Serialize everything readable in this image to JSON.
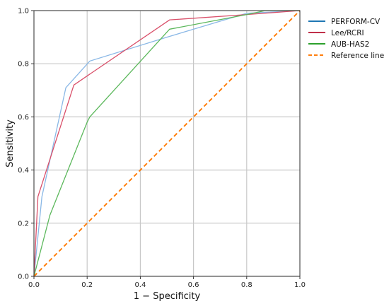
{
  "chart_data": {
    "type": "line",
    "title": "",
    "xlabel": "1 − Specificity",
    "ylabel": "Sensitivity",
    "xlim": [
      0,
      1
    ],
    "ylim": [
      0,
      1
    ],
    "xticks": [
      0.0,
      0.2,
      0.4,
      0.6,
      0.8,
      1.0
    ],
    "yticks": [
      0.0,
      0.2,
      0.4,
      0.6,
      0.8,
      1.0
    ],
    "xtick_labels": [
      "0.0",
      "0.2",
      "0.4",
      "0.6",
      "0.8",
      "1.0"
    ],
    "ytick_labels": [
      "0.0",
      "0.2",
      "0.4",
      "0.6",
      "0.8",
      "1.0"
    ],
    "grid": true,
    "legend_position": "top-right",
    "series": [
      {
        "name": "PERFORM-CV",
        "color": "#1f77b4",
        "legend_color": "#1f77b4",
        "line_color": "#8ab8e6",
        "dashed": false,
        "x": [
          0,
          0.03,
          0.12,
          0.21,
          0.5,
          0.8,
          1.0
        ],
        "y": [
          0,
          0.3,
          0.71,
          0.81,
          0.9,
          0.99,
          1.0
        ]
      },
      {
        "name": "Lee/RCRI",
        "color": "#d62728",
        "legend_color": "#c0304a",
        "line_color": "#d9506a",
        "dashed": false,
        "x": [
          0,
          0.015,
          0.15,
          0.51,
          0.8,
          1.0
        ],
        "y": [
          0,
          0.3,
          0.72,
          0.965,
          0.985,
          1.0
        ]
      },
      {
        "name": "AUB-HAS2",
        "color": "#2ca02c",
        "legend_color": "#2ca02c",
        "line_color": "#5cb85c",
        "dashed": false,
        "x": [
          0,
          0.06,
          0.2,
          0.21,
          0.51,
          0.8,
          0.87,
          1.0
        ],
        "y": [
          0,
          0.23,
          0.58,
          0.6,
          0.93,
          0.985,
          1.0,
          1.0
        ]
      },
      {
        "name": "Reference line",
        "color": "#ff7f0e",
        "legend_color": "#ff7f0e",
        "line_color": "#ff7f0e",
        "dashed": true,
        "x": [
          0,
          1
        ],
        "y": [
          0,
          1
        ]
      }
    ]
  }
}
